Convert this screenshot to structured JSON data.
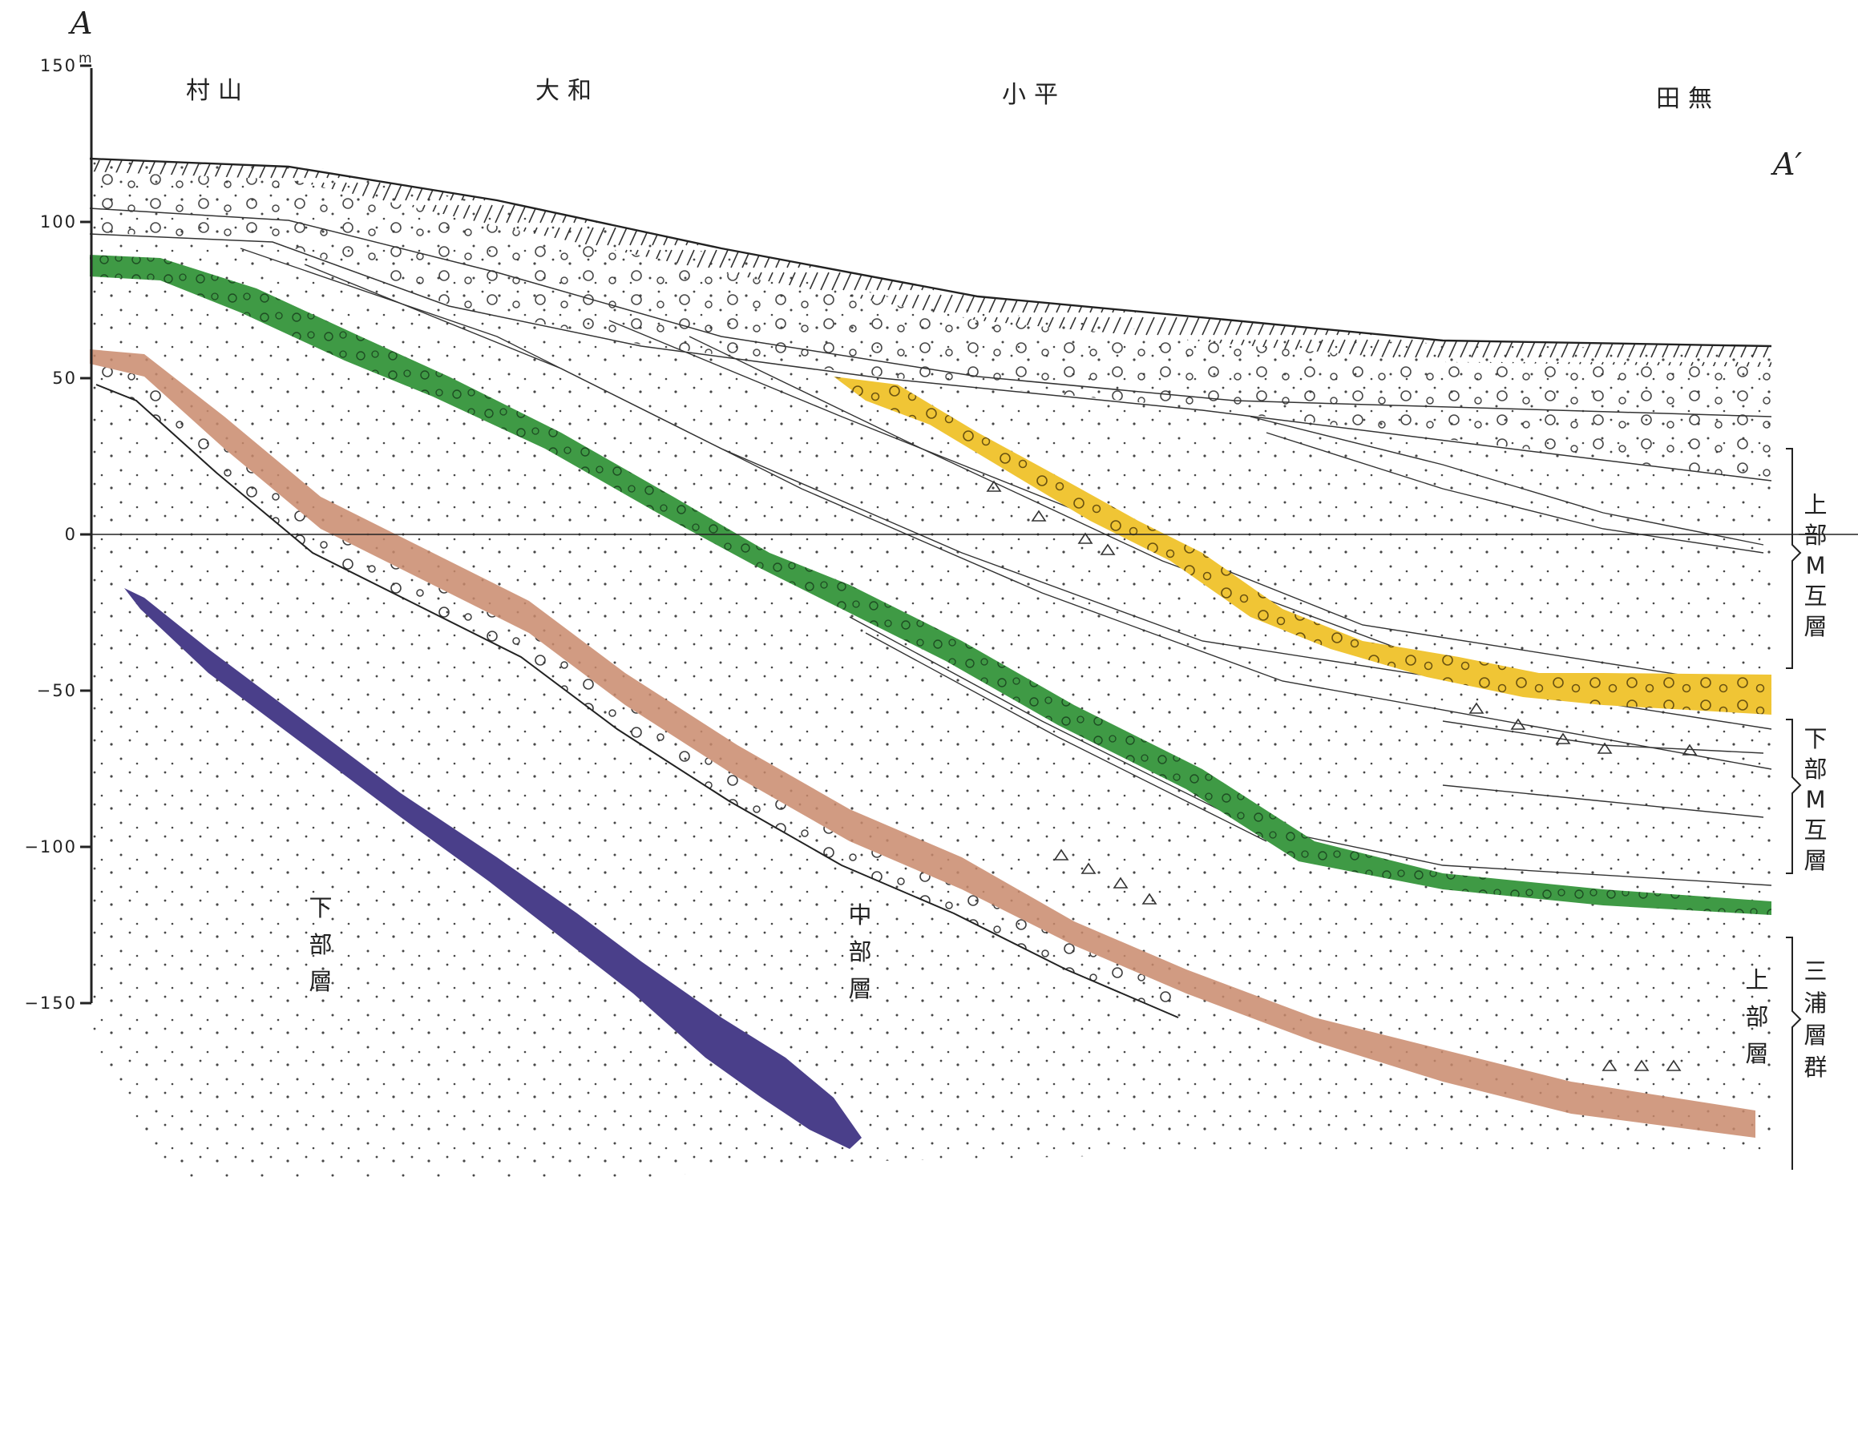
{
  "section": {
    "label_start": "A",
    "label_end": "A′",
    "axis_unit": "m",
    "axis_ticks": [
      {
        "value": 150,
        "label": "150"
      },
      {
        "value": 100,
        "label": "100"
      },
      {
        "value": 50,
        "label": "50"
      },
      {
        "value": 0,
        "label": "0"
      },
      {
        "value": -50,
        "label": "−50"
      },
      {
        "value": -100,
        "label": "−100"
      },
      {
        "value": -150,
        "label": "−150"
      }
    ],
    "places": [
      "村山",
      "大和",
      "小平",
      "田無"
    ],
    "strata_labels": {
      "lower": "下部層",
      "middle": "中部層",
      "upper": "上部層"
    },
    "brackets": {
      "upper_m": "上部M互層",
      "lower_m": "下部M互層",
      "miura": "三浦層群"
    },
    "colors": {
      "green_layer": "#3f9a45",
      "orange_layer": "#c98a6c",
      "yellow_layer": "#f0c535",
      "purple_layer": "#4a3f8a"
    }
  }
}
